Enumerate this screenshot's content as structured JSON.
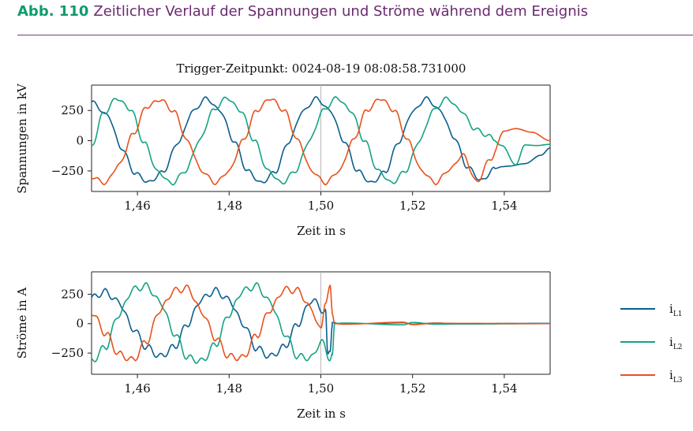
{
  "figure": {
    "label": "Abb. 110",
    "title": "Zeitlicher Verlauf der Spannungen und Ströme während dem Ereignis"
  },
  "colors": {
    "L1": "#0b5f8e",
    "L2": "#16a383",
    "L3": "#e8521c",
    "accent": "#0f9b6e",
    "title": "#6b2a6f"
  },
  "chart_data": [
    {
      "type": "line",
      "title": "Trigger-Zeitpunkt: 0024-08-19 08:08:58.731000",
      "xlabel": "Zeit in s",
      "ylabel": "Spannungen in kV",
      "xlim": [
        1.45,
        1.55
      ],
      "ylim": [
        -420,
        460
      ],
      "xticks": [
        "1,46",
        "1,48",
        "1,50",
        "1,52",
        "1,54"
      ],
      "yticks": [
        "250",
        "0",
        "−250"
      ],
      "trigger_x": 1.5,
      "series": [
        {
          "name": "",
          "color_key": "L1",
          "points": [
            [
              1.45,
              320
            ],
            [
              1.4535,
              210
            ],
            [
              1.4565,
              -60
            ],
            [
              1.4595,
              -270
            ],
            [
              1.4625,
              -345
            ],
            [
              1.4655,
              -260
            ],
            [
              1.469,
              -10
            ],
            [
              1.472,
              240
            ],
            [
              1.475,
              350
            ],
            [
              1.478,
              250
            ],
            [
              1.481,
              0
            ],
            [
              1.484,
              -250
            ],
            [
              1.487,
              -350
            ],
            [
              1.49,
              -260
            ],
            [
              1.493,
              -10
            ],
            [
              1.496,
              240
            ],
            [
              1.499,
              350
            ],
            [
              1.502,
              250
            ],
            [
              1.505,
              0
            ],
            [
              1.508,
              -250
            ],
            [
              1.511,
              -350
            ],
            [
              1.514,
              -260
            ],
            [
              1.517,
              -10
            ],
            [
              1.52,
              240
            ],
            [
              1.523,
              350
            ],
            [
              1.526,
              250
            ],
            [
              1.529,
              30
            ],
            [
              1.532,
              -220
            ],
            [
              1.535,
              -330
            ],
            [
              1.538,
              -230
            ],
            [
              1.5395,
              -215
            ],
            [
              1.541,
              -210
            ],
            [
              1.5445,
              -190
            ],
            [
              1.548,
              -120
            ],
            [
              1.55,
              -60
            ]
          ]
        },
        {
          "name": "",
          "color_key": "L2",
          "points": [
            [
              1.45,
              -50
            ],
            [
              1.4525,
              220
            ],
            [
              1.4555,
              350
            ],
            [
              1.4585,
              260
            ],
            [
              1.4615,
              -20
            ],
            [
              1.4645,
              -260
            ],
            [
              1.4675,
              -355
            ],
            [
              1.4705,
              -250
            ],
            [
              1.4735,
              0
            ],
            [
              1.4765,
              250
            ],
            [
              1.4795,
              355
            ],
            [
              1.4825,
              250
            ],
            [
              1.4855,
              0
            ],
            [
              1.4885,
              -250
            ],
            [
              1.4915,
              -350
            ],
            [
              1.4945,
              -250
            ],
            [
              1.4975,
              0
            ],
            [
              1.5005,
              250
            ],
            [
              1.5035,
              355
            ],
            [
              1.5065,
              250
            ],
            [
              1.5095,
              0
            ],
            [
              1.5125,
              -250
            ],
            [
              1.5155,
              -350
            ],
            [
              1.5185,
              -250
            ],
            [
              1.5215,
              0
            ],
            [
              1.5245,
              250
            ],
            [
              1.5275,
              350
            ],
            [
              1.5305,
              250
            ],
            [
              1.5335,
              100
            ],
            [
              1.5365,
              40
            ],
            [
              1.5395,
              -40
            ],
            [
              1.5425,
              -200
            ],
            [
              1.5445,
              -35
            ],
            [
              1.547,
              -40
            ],
            [
              1.55,
              -30
            ]
          ]
        },
        {
          "name": "",
          "color_key": "L3",
          "points": [
            [
              1.45,
              -300
            ],
            [
              1.453,
              -350
            ],
            [
              1.456,
              -200
            ],
            [
              1.459,
              50
            ],
            [
              1.462,
              280
            ],
            [
              1.465,
              340
            ],
            [
              1.468,
              240
            ],
            [
              1.471,
              -10
            ],
            [
              1.474,
              -250
            ],
            [
              1.477,
              -350
            ],
            [
              1.48,
              -250
            ],
            [
              1.483,
              0
            ],
            [
              1.486,
              250
            ],
            [
              1.489,
              350
            ],
            [
              1.492,
              250
            ],
            [
              1.495,
              0
            ],
            [
              1.498,
              -250
            ],
            [
              1.501,
              -350
            ],
            [
              1.504,
              -250
            ],
            [
              1.507,
              0
            ],
            [
              1.51,
              250
            ],
            [
              1.513,
              350
            ],
            [
              1.516,
              250
            ],
            [
              1.519,
              0
            ],
            [
              1.522,
              -250
            ],
            [
              1.525,
              -350
            ],
            [
              1.528,
              -240
            ],
            [
              1.531,
              -120
            ],
            [
              1.534,
              -340
            ],
            [
              1.537,
              -150
            ],
            [
              1.54,
              80
            ],
            [
              1.5425,
              100
            ],
            [
              1.546,
              70
            ],
            [
              1.55,
              0
            ]
          ]
        }
      ]
    },
    {
      "type": "line",
      "xlabel": "Zeit in s",
      "ylabel": "Ströme in A",
      "xlim": [
        1.45,
        1.55
      ],
      "ylim": [
        -430,
        440
      ],
      "xticks": [
        "1,46",
        "1,48",
        "1,50",
        "1,52",
        "1,54"
      ],
      "yticks": [
        "250",
        "0",
        "−250"
      ],
      "trigger_x": 1.5,
      "legend_position": "right",
      "legend": [
        {
          "label": "i",
          "sub": "L1",
          "color_key": "L1"
        },
        {
          "label": "i",
          "sub": "L2",
          "color_key": "L2"
        },
        {
          "label": "i",
          "sub": "L3",
          "color_key": "L3"
        }
      ],
      "series": [
        {
          "name": "iL1",
          "color_key": "L1",
          "points": [
            [
              1.45,
              220
            ],
            [
              1.453,
              270
            ],
            [
              1.456,
              180
            ],
            [
              1.459,
              -40
            ],
            [
              1.462,
              -200
            ],
            [
              1.465,
              -280
            ],
            [
              1.468,
              -200
            ],
            [
              1.471,
              0
            ],
            [
              1.474,
              210
            ],
            [
              1.477,
              280
            ],
            [
              1.48,
              200
            ],
            [
              1.483,
              0
            ],
            [
              1.486,
              -210
            ],
            [
              1.489,
              -280
            ],
            [
              1.492,
              -200
            ],
            [
              1.495,
              0
            ],
            [
              1.498,
              200
            ],
            [
              1.501,
              100
            ],
            [
              1.5015,
              -280
            ],
            [
              1.502,
              -230
            ],
            [
              1.5025,
              10
            ],
            [
              1.504,
              0
            ],
            [
              1.51,
              0
            ],
            [
              1.518,
              8
            ],
            [
              1.52,
              -5
            ],
            [
              1.525,
              5
            ],
            [
              1.53,
              0
            ],
            [
              1.55,
              2
            ]
          ]
        },
        {
          "name": "iL2",
          "color_key": "L2",
          "points": [
            [
              1.45,
              -320
            ],
            [
              1.453,
              -200
            ],
            [
              1.456,
              80
            ],
            [
              1.459,
              290
            ],
            [
              1.462,
              320
            ],
            [
              1.465,
              180
            ],
            [
              1.468,
              -80
            ],
            [
              1.471,
              -290
            ],
            [
              1.474,
              -320
            ],
            [
              1.477,
              -180
            ],
            [
              1.48,
              80
            ],
            [
              1.483,
              280
            ],
            [
              1.486,
              320
            ],
            [
              1.489,
              180
            ],
            [
              1.492,
              -80
            ],
            [
              1.495,
              -280
            ],
            [
              1.498,
              -290
            ],
            [
              1.5,
              -150
            ],
            [
              1.502,
              -290
            ],
            [
              1.5025,
              -260
            ],
            [
              1.503,
              0
            ],
            [
              1.505,
              5
            ],
            [
              1.518,
              -10
            ],
            [
              1.52,
              10
            ],
            [
              1.525,
              -5
            ],
            [
              1.53,
              -3
            ],
            [
              1.55,
              0
            ]
          ]
        },
        {
          "name": "iL3",
          "color_key": "L3",
          "points": [
            [
              1.45,
              100
            ],
            [
              1.453,
              -80
            ],
            [
              1.456,
              -260
            ],
            [
              1.459,
              -310
            ],
            [
              1.462,
              -150
            ],
            [
              1.465,
              120
            ],
            [
              1.468,
              280
            ],
            [
              1.471,
              300
            ],
            [
              1.474,
              100
            ],
            [
              1.477,
              -120
            ],
            [
              1.48,
              -280
            ],
            [
              1.483,
              -290
            ],
            [
              1.486,
              -100
            ],
            [
              1.489,
              120
            ],
            [
              1.492,
              290
            ],
            [
              1.495,
              280
            ],
            [
              1.498,
              120
            ],
            [
              1.5,
              -60
            ],
            [
              1.501,
              200
            ],
            [
              1.502,
              300
            ],
            [
              1.5025,
              80
            ],
            [
              1.503,
              0
            ],
            [
              1.505,
              -5
            ],
            [
              1.518,
              12
            ],
            [
              1.52,
              -8
            ],
            [
              1.525,
              4
            ],
            [
              1.53,
              2
            ],
            [
              1.55,
              0
            ]
          ]
        }
      ]
    }
  ]
}
